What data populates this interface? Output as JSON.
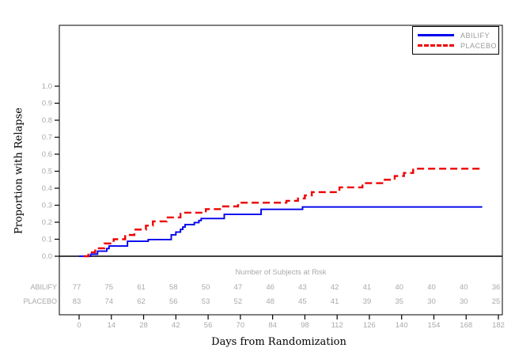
{
  "colors": {
    "abilify": "#0000ee",
    "placebo": "#ee0000",
    "muted_text": "#a9a9a9",
    "axis": "#000000",
    "background": "#ffffff"
  },
  "legend": {
    "items": [
      {
        "label": "ABILIFY",
        "color": "#0000ee",
        "line_style": "solid"
      },
      {
        "label": "PLACEBO",
        "color": "#ee0000",
        "line_style": "dashed"
      }
    ]
  },
  "chart_data": {
    "type": "line",
    "variant": "kaplan_meier_step",
    "title": "",
    "xlabel": "Days from Randomization",
    "ylabel": "Proportion with Relapse",
    "xlim": [
      0,
      182
    ],
    "ylim": [
      0,
      1.0
    ],
    "grid": false,
    "legend_position": "top-right",
    "x_ticks": [
      0,
      14,
      28,
      42,
      56,
      70,
      84,
      98,
      112,
      126,
      140,
      154,
      168,
      182
    ],
    "y_tick_labels": [
      "0.0",
      "0.1",
      "0.2",
      "0.3",
      "0.4",
      "0.5",
      "0.6",
      "0.7",
      "0.8",
      "0.9",
      "1.0"
    ],
    "series": [
      {
        "name": "ABILIFY",
        "color": "#0000ee",
        "line_style": "solid",
        "steps": [
          [
            0,
            0
          ],
          [
            5,
            0.012
          ],
          [
            8,
            0.03
          ],
          [
            12,
            0.045
          ],
          [
            13,
            0.06
          ],
          [
            21,
            0.088
          ],
          [
            30,
            0.098
          ],
          [
            40,
            0.126
          ],
          [
            42,
            0.142
          ],
          [
            44,
            0.158
          ],
          [
            45,
            0.172
          ],
          [
            46,
            0.186
          ],
          [
            50,
            0.198
          ],
          [
            52,
            0.21
          ],
          [
            53,
            0.222
          ],
          [
            63,
            0.246
          ],
          [
            79,
            0.276
          ],
          [
            97,
            0.29
          ],
          [
            175,
            0.29
          ]
        ]
      },
      {
        "name": "PLACEBO",
        "color": "#ee0000",
        "line_style": "dashed",
        "steps": [
          [
            2,
            0
          ],
          [
            4,
            0.023
          ],
          [
            7,
            0.047
          ],
          [
            11,
            0.075
          ],
          [
            15,
            0.1
          ],
          [
            20,
            0.125
          ],
          [
            24,
            0.157
          ],
          [
            29,
            0.18
          ],
          [
            32,
            0.205
          ],
          [
            38,
            0.228
          ],
          [
            44,
            0.256
          ],
          [
            55,
            0.277
          ],
          [
            62,
            0.293
          ],
          [
            69,
            0.315
          ],
          [
            90,
            0.326
          ],
          [
            95,
            0.34
          ],
          [
            98,
            0.358
          ],
          [
            101,
            0.377
          ],
          [
            113,
            0.405
          ],
          [
            123,
            0.43
          ],
          [
            132,
            0.45
          ],
          [
            137,
            0.472
          ],
          [
            141,
            0.49
          ],
          [
            145,
            0.515
          ],
          [
            175,
            0.515
          ]
        ]
      }
    ],
    "at_risk_table": {
      "title": "Number of Subjects at Risk",
      "rows": [
        {
          "label": "ABILIFY",
          "values": [
            77,
            75,
            61,
            58,
            50,
            47,
            46,
            43,
            42,
            41,
            40,
            40,
            40,
            36
          ]
        },
        {
          "label": "PLACEBO",
          "values": [
            83,
            74,
            62,
            56,
            53,
            52,
            48,
            45,
            41,
            39,
            35,
            30,
            30,
            25
          ]
        }
      ]
    }
  }
}
